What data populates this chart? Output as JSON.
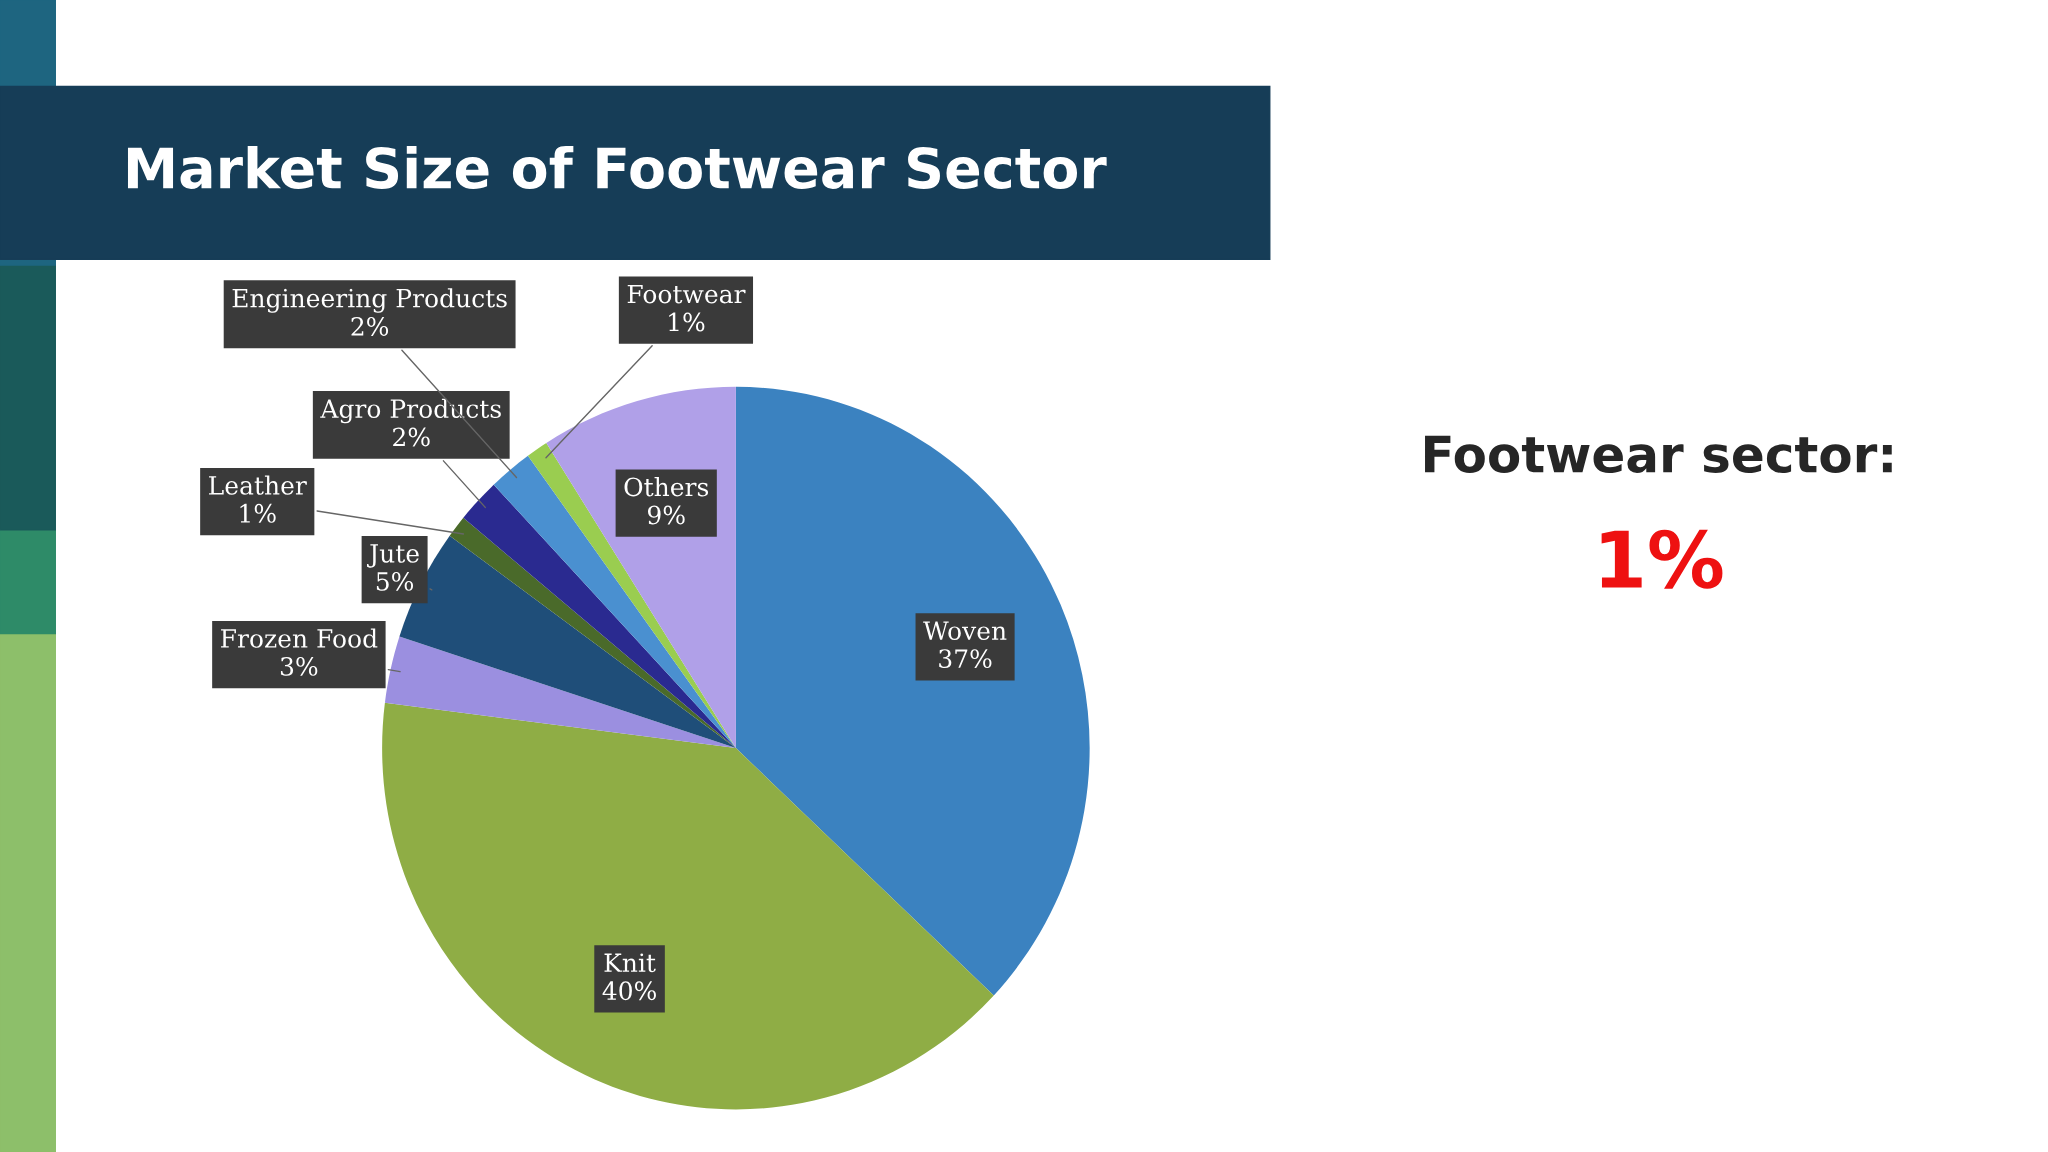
{
  "chart_data": {
    "type": "pie",
    "title": "Market Size of Footwear Sector",
    "categories": [
      "Woven",
      "Knit",
      "Frozen Food",
      "Jute",
      "Leather",
      "Agro Products",
      "Engineering Products",
      "Footwear",
      "Others"
    ],
    "values": [
      37,
      40,
      3,
      5,
      1,
      2,
      2,
      1,
      9
    ],
    "colors": [
      "#3b82c0",
      "#8fad45",
      "#9b8fe0",
      "#1f4e79",
      "#4a6a2a",
      "#2a2a90",
      "#4a90d0",
      "#9acd50",
      "#b0a0e8"
    ],
    "value_labels": [
      "37%",
      "40%",
      "3%",
      "5%",
      "1%",
      "2%",
      "2%",
      "1%",
      "9%"
    ],
    "annotations": [
      "Footwear sector:",
      "1%"
    ]
  }
}
